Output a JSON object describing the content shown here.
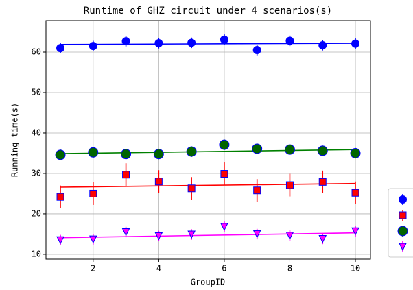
{
  "chart_data": {
    "type": "errorbar",
    "title": "Runtime of GHZ circuit under 4 scenarios(s)",
    "xlabel": "GroupID",
    "ylabel": "Running time(s)",
    "x": [
      1,
      2,
      3,
      4,
      5,
      6,
      7,
      8,
      9,
      10
    ],
    "xlim": [
      0.56,
      10.46
    ],
    "xticks": [
      2,
      4,
      6,
      8,
      10
    ],
    "ylim": [
      8.8,
      67.8
    ],
    "yticks": [
      10,
      20,
      30,
      40,
      50,
      60
    ],
    "grid": true,
    "legend": "outside right",
    "series": [
      {
        "color": "#0000ff",
        "marker": "circle",
        "fill": "#0000ff",
        "values": [
          61,
          61.5,
          62.7,
          62.2,
          62.3,
          63.1,
          60.5,
          62.8,
          61.7,
          62.1
        ],
        "errors": [
          1.3,
          1.3,
          1.3,
          1.3,
          1.3,
          1.3,
          1.3,
          1.3,
          1.3,
          1.3
        ],
        "trend": [
          61.9,
          62.2
        ]
      },
      {
        "color": "#ff0000",
        "marker": "square",
        "fill": "#ff0000",
        "values": [
          24.2,
          25,
          29.7,
          28,
          26.3,
          29.9,
          25.8,
          27.1,
          27.9,
          25.2
        ],
        "errors": [
          2.8,
          2.8,
          2.8,
          2.8,
          2.8,
          2.8,
          2.8,
          2.8,
          2.8,
          2.8
        ],
        "trend": [
          26.6,
          27.5
        ]
      },
      {
        "color": "#008000",
        "marker": "circle-big",
        "fill": "#006400",
        "values": [
          34.6,
          35.2,
          34.8,
          34.8,
          35.4,
          37.1,
          36.1,
          35.9,
          35.6,
          35
        ],
        "errors": [
          1.3,
          1.3,
          1.3,
          1.3,
          1.3,
          1.3,
          1.3,
          1.3,
          1.3,
          1.3
        ],
        "trend": [
          34.9,
          35.9
        ]
      },
      {
        "color": "#ff00ff",
        "marker": "triangle",
        "fill": "#ff00ff",
        "values": [
          13.5,
          13.7,
          15.5,
          14.5,
          14.9,
          16.8,
          15,
          14.6,
          13.8,
          15.7
        ],
        "errors": [
          1.3,
          1.3,
          1.3,
          1.3,
          1.3,
          1.3,
          1.3,
          1.3,
          1.3,
          1.3
        ],
        "trend": [
          14.1,
          15.3
        ]
      }
    ]
  }
}
